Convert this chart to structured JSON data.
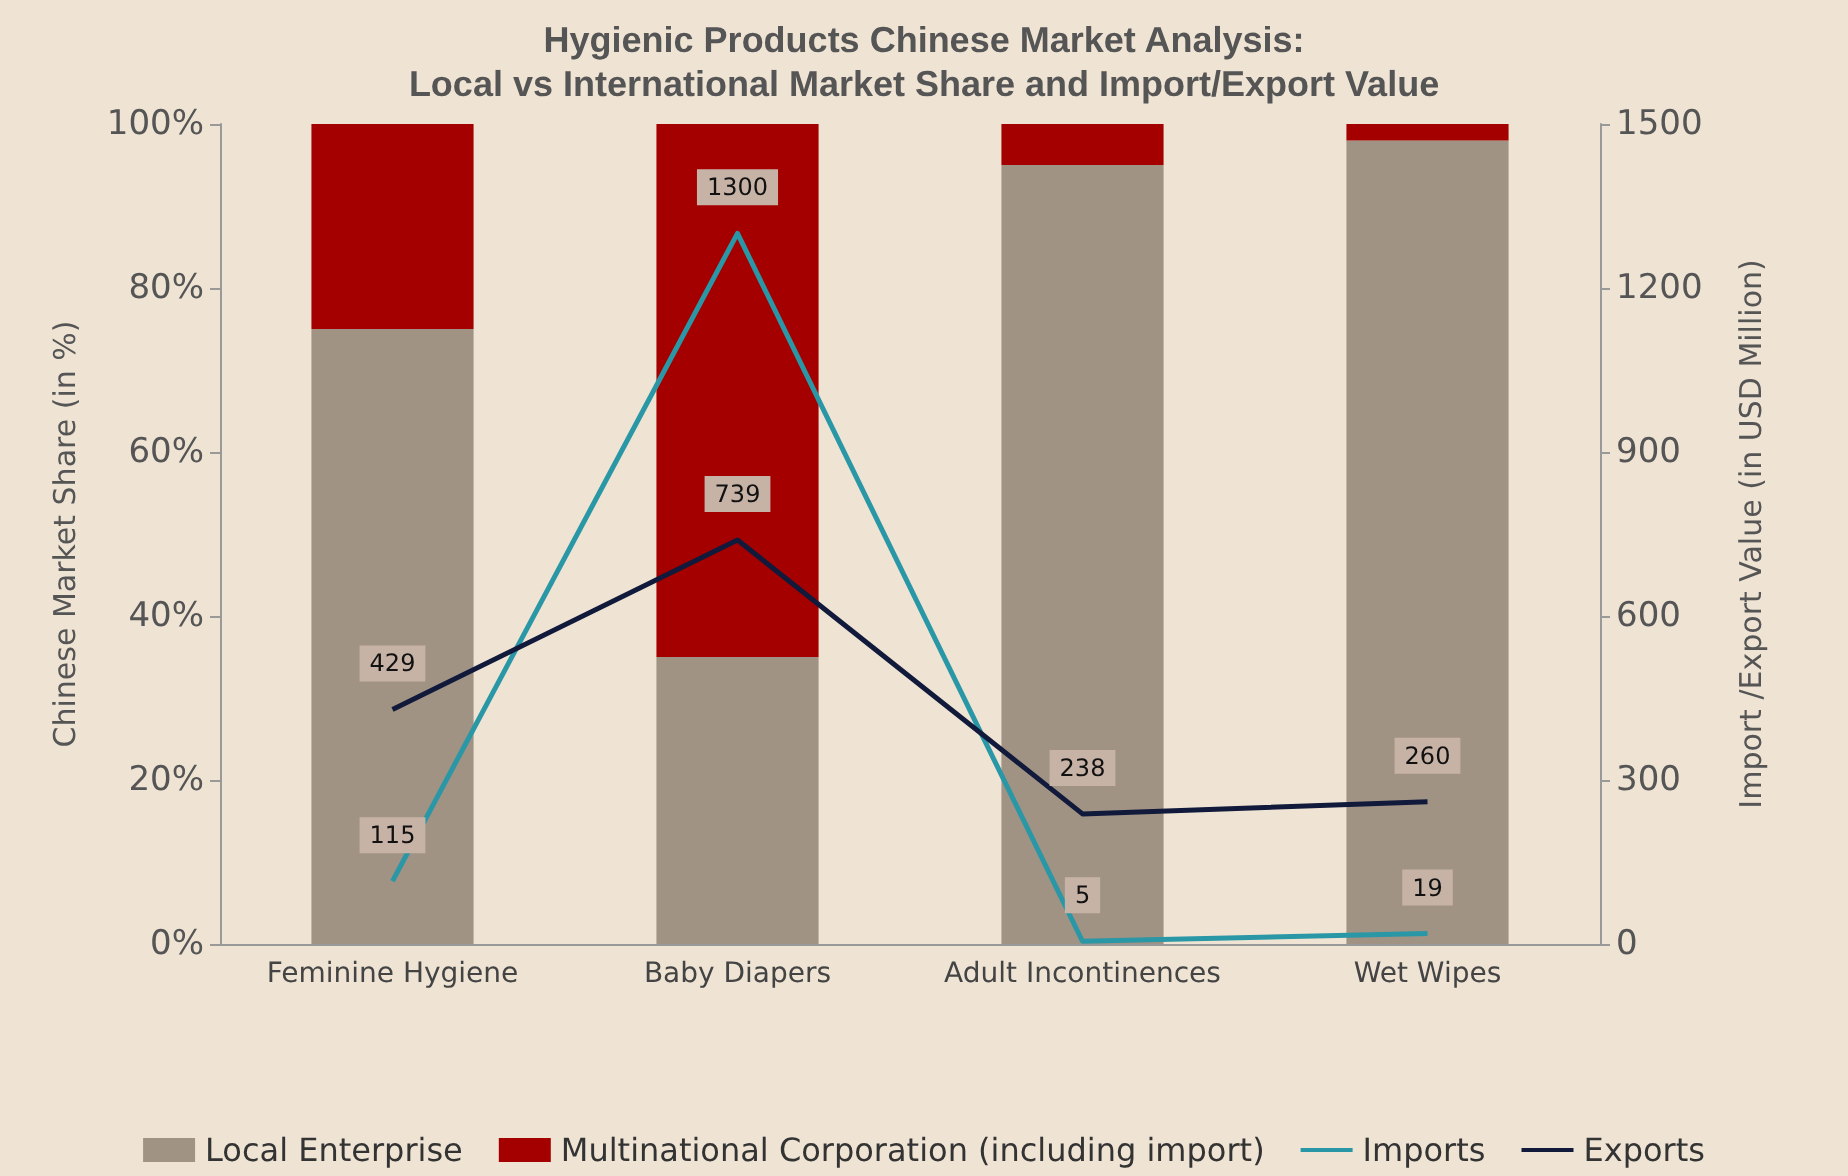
{
  "chart_data": {
    "type": "bar",
    "title": "Hygienic Products Chinese Market Analysis:\nLocal vs International Market Share and Import/Export Value",
    "ylabel": "Chinese Market Share (in %)",
    "y2label": "Import /Export Value (in USD Million)",
    "categories": [
      "Feminine Hygiene",
      "Baby Diapers",
      "Adult Incontinences",
      "Wet Wipes"
    ],
    "stacked": true,
    "legend": "bottom",
    "grid": false,
    "ylim": [
      0,
      100
    ],
    "yticks": [
      {
        "value": 0,
        "label": "0%"
      },
      {
        "value": 20,
        "label": "20%"
      },
      {
        "value": 40,
        "label": "40%"
      },
      {
        "value": 60,
        "label": "60%"
      },
      {
        "value": 80,
        "label": "80%"
      },
      {
        "value": 100,
        "label": "100%"
      }
    ],
    "y2lim": [
      0,
      1500
    ],
    "y2ticks": [
      0,
      300,
      600,
      900,
      1200,
      1500
    ],
    "series": [
      {
        "name": "Local Enterprise",
        "color": "#a09383",
        "values": [
          75,
          35,
          95,
          98
        ]
      },
      {
        "name": "Multinational Corporation (including import)",
        "color": "#a50000",
        "values": [
          25,
          65,
          5,
          2
        ]
      },
      {
        "name": "Imports",
        "type": "line",
        "axis": "y2",
        "color": "#2a97a6",
        "values": [
          115,
          1300,
          5,
          19
        ],
        "value_labels": [
          "115",
          "1300",
          "5",
          "19"
        ]
      },
      {
        "name": "Exports",
        "type": "line",
        "axis": "y2",
        "color": "#121a3c",
        "values": [
          429,
          739,
          238,
          260
        ],
        "value_labels": [
          "429",
          "739",
          "238",
          "260"
        ]
      }
    ]
  }
}
